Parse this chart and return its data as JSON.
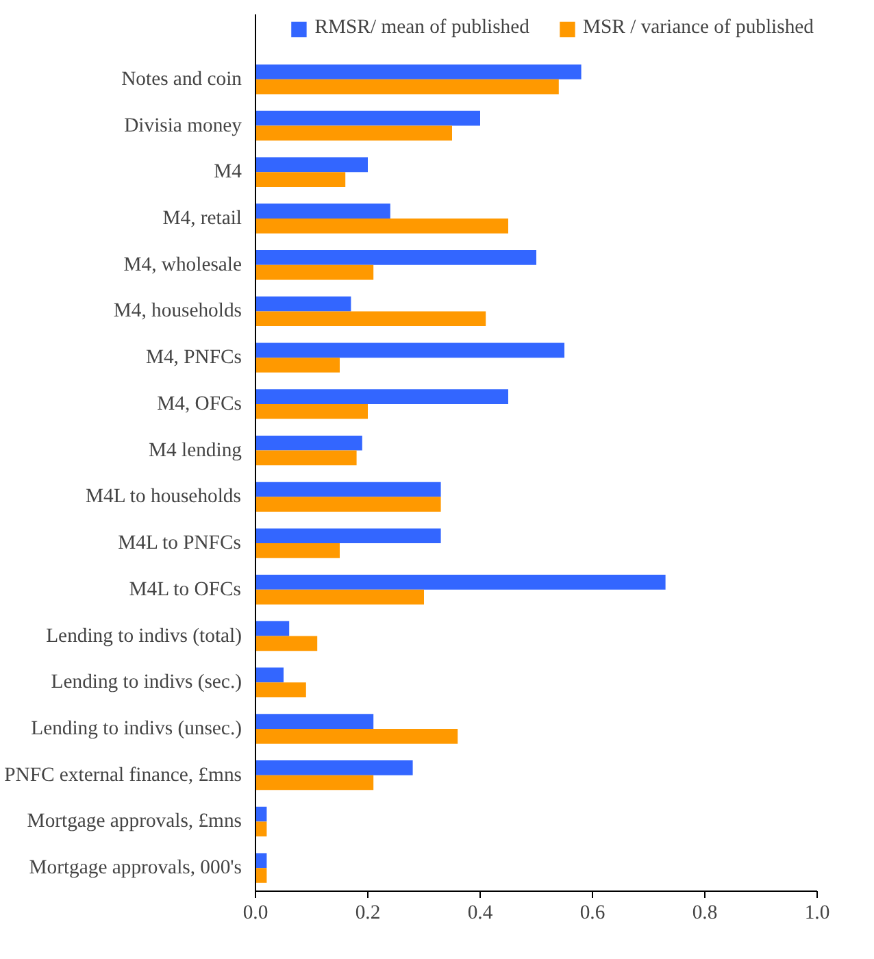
{
  "chart_data": {
    "type": "bar",
    "orientation": "horizontal",
    "categories": [
      "Notes and coin",
      "Divisia money",
      "M4",
      "M4, retail",
      "M4, wholesale",
      "M4, households",
      "M4, PNFCs",
      "M4, OFCs",
      "M4 lending",
      "M4L to households",
      "M4L to PNFCs",
      "M4L to OFCs",
      "Lending to indivs (total)",
      "Lending to indivs (sec.)",
      "Lending to indivs (unsec.)",
      "PNFC external finance, £mns",
      "Mortgage approvals, £mns",
      "Mortgage approvals, 000's"
    ],
    "series": [
      {
        "name": "RMSR/ mean of published",
        "color": "#3366ff",
        "values": [
          0.58,
          0.4,
          0.2,
          0.24,
          0.5,
          0.17,
          0.55,
          0.45,
          0.19,
          0.33,
          0.33,
          0.73,
          0.06,
          0.05,
          0.21,
          0.28,
          0.02,
          0.02
        ]
      },
      {
        "name": "MSR / variance of published",
        "color": "#ff9900",
        "values": [
          0.54,
          0.35,
          0.16,
          0.45,
          0.21,
          0.41,
          0.15,
          0.2,
          0.18,
          0.33,
          0.15,
          0.3,
          0.11,
          0.09,
          0.36,
          0.21,
          0.02,
          0.02
        ]
      }
    ],
    "xlim": [
      0,
      1.0
    ],
    "xticks": [
      {
        "value": 0,
        "label": "0.0"
      },
      0.2,
      0.4,
      0.6,
      0.8,
      {
        "value": 1,
        "label": "1.0"
      }
    ],
    "legend": "top",
    "grid": false
  }
}
